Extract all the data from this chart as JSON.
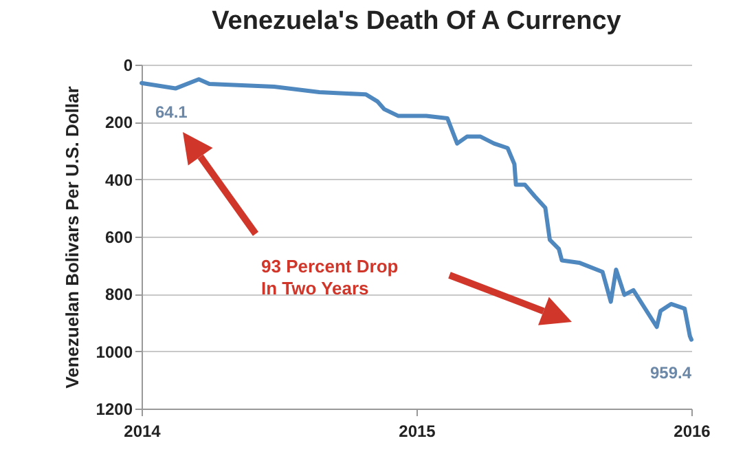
{
  "chart_data": {
    "type": "line",
    "title": "Venezuela's Death Of A Currency",
    "ylabel": "Venezuelan Bolivars Per U.S. Dollar",
    "x": [
      "2014-01-01",
      "2014-02-15",
      "2014-03-18",
      "2014-04-01",
      "2014-06-26",
      "2014-08-25",
      "2014-10-26",
      "2014-11-10",
      "2014-11-19",
      "2014-12-08",
      "2015-01-14",
      "2015-02-11",
      "2015-02-24",
      "2015-03-09",
      "2015-03-27",
      "2015-04-14",
      "2015-05-02",
      "2015-05-11",
      "2015-05-13",
      "2015-05-25",
      "2015-06-07",
      "2015-06-21",
      "2015-06-27",
      "2015-07-09",
      "2015-07-13",
      "2015-08-05",
      "2015-09-05",
      "2015-09-16",
      "2015-09-23",
      "2015-10-04",
      "2015-10-16",
      "2015-11-16",
      "2015-11-21",
      "2015-12-05",
      "2015-12-23",
      "2015-12-30",
      "2016-01-01"
    ],
    "series": [
      {
        "color": "#4f87bf",
        "values": [
          64.1,
          83,
          51,
          67,
          77,
          96,
          104,
          128,
          155,
          179,
          179,
          187,
          275,
          251,
          251,
          275,
          291,
          347,
          419,
          419,
          459,
          499,
          611,
          643,
          683,
          691,
          723,
          827,
          715,
          803,
          787,
          915,
          859,
          835,
          851,
          947,
          959.4
        ]
      }
    ],
    "ylim": [
      1200,
      0
    ],
    "yticks": [
      0,
      200,
      400,
      600,
      800,
      1000,
      1200
    ],
    "xlim": [
      "2014",
      "2016"
    ],
    "xticks": [
      "2014",
      "2015",
      "2016"
    ],
    "grid": "y",
    "annotations": [
      {
        "text": "64.1",
        "x": "2014-01-01",
        "y": 64.1
      },
      {
        "text": "959.4",
        "x": "2016-01-01",
        "y": 959.4
      },
      "93 Percent Drop\nIn Two Years"
    ]
  }
}
